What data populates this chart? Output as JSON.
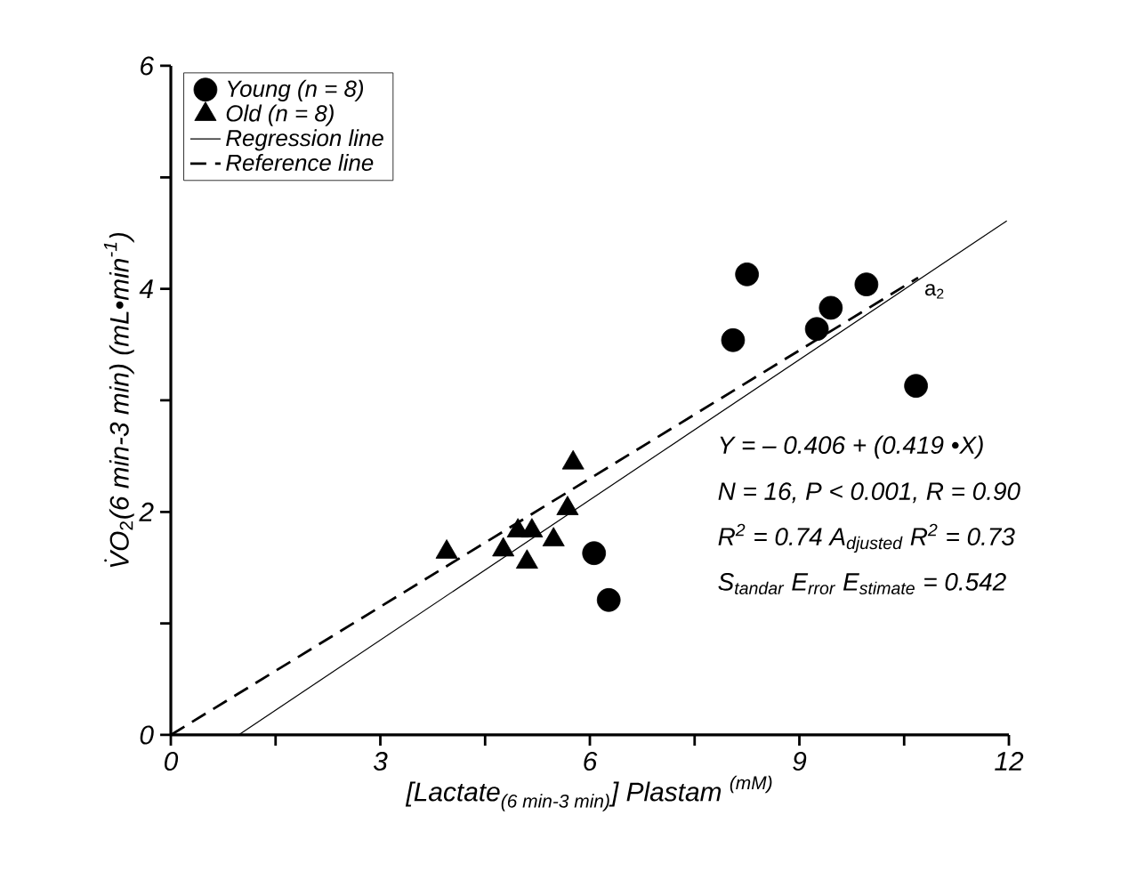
{
  "chart_data": {
    "type": "scatter",
    "xlabel": "\\textit{[Lactate}_{\\textit{(6 min-3 min)}}\\textit{] Plastam }^{\\textit{(mM)}}",
    "ylabel": "\\dot{V}O_{2}\\textit{(6 min-3 min) (mL•min}^{\\textit{-1}}\\textit{)}",
    "xlim": [
      0,
      12
    ],
    "ylim": [
      0,
      6
    ],
    "xticks": [
      0,
      {
        "value": 1.5,
        "label": null
      },
      3,
      {
        "value": 4.5,
        "label": null
      },
      6,
      {
        "value": 7.5,
        "label": null
      },
      9,
      {
        "value": 10.5,
        "label": null
      },
      12
    ],
    "yticks": [
      0,
      {
        "value": 1,
        "label": null
      },
      2,
      {
        "value": 3,
        "label": null
      },
      4,
      {
        "value": 5,
        "label": null
      },
      6
    ],
    "grid": false,
    "legend": "top left",
    "series": [
      {
        "name": "Young (n = 8)",
        "color": "#000000",
        "marker": "circle",
        "x": [
          8.25,
          8.05,
          9.45,
          9.25,
          9.96,
          10.67,
          6.06,
          6.27
        ],
        "values": [
          4.13,
          3.54,
          3.83,
          3.64,
          4.04,
          3.13,
          1.63,
          1.21
        ]
      },
      {
        "name": "Old (n = 8)",
        "color": "#000000",
        "marker": "triangle",
        "x": [
          5.76,
          5.68,
          3.95,
          4.76,
          5.1,
          4.97,
          5.17,
          5.48
        ],
        "values": [
          2.44,
          2.03,
          1.64,
          1.66,
          1.55,
          1.83,
          1.83,
          1.75
        ]
      },
      {
        "name": "Regression line",
        "type": "line",
        "color": "#000000",
        "marker": "none",
        "line_style": "solid",
        "x": [
          0.97,
          11.97
        ],
        "values": [
          0,
          4.61
        ]
      },
      {
        "name": "Reference line",
        "type": "line",
        "color": "#000000",
        "marker": "none",
        "line_style": "dashed",
        "x": [
          0,
          10.7
        ],
        "values": [
          0,
          4.1
        ]
      }
    ],
    "annotations": [
      "a$_{2}$",
      "Y = – 0.406 + (0.419 •X)",
      "N = 16, P < 0.001, R = 0.90",
      "R$^{2}$ = 0.74 A$_{djusted}$ R$^{2}$ = 0.73",
      "S$_{tandar}$ E$_{rror}$ E$_{stimate}$ = 0.542"
    ]
  }
}
